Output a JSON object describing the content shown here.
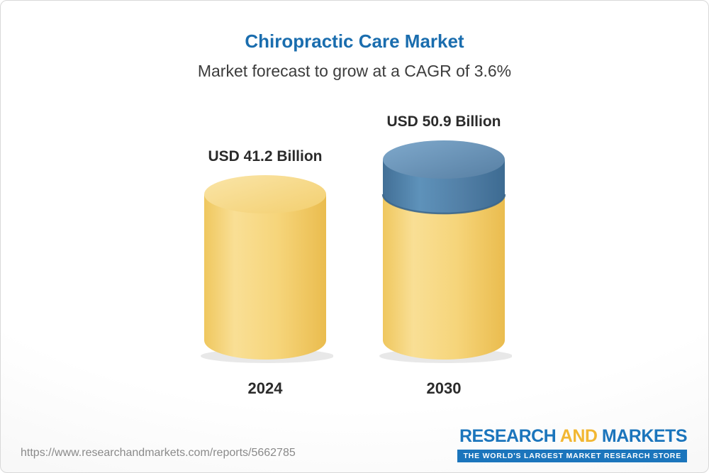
{
  "page": {
    "title": "Chiropractic Care Market",
    "subtitle": "Market forecast to grow at a CAGR of 3.6%"
  },
  "chart_data": {
    "type": "bar",
    "title": "Chiropractic Care Market",
    "subtitle": "Market forecast to grow at a CAGR of 3.6%",
    "cagr_percent": 3.6,
    "unit": "USD Billion",
    "categories": [
      "2024",
      "2030"
    ],
    "values": [
      41.2,
      50.9
    ],
    "ylim": [
      0,
      50.9
    ],
    "grid": false,
    "legend": "none",
    "bars": [
      {
        "category": "2024",
        "value": 41.2,
        "label": "USD 41.2 Billion",
        "segments": [
          {
            "value": 41.2,
            "color": "yellow"
          }
        ]
      },
      {
        "category": "2030",
        "value": 50.9,
        "label": "USD 50.9 Billion",
        "segments": [
          {
            "value": 41.2,
            "color": "yellow"
          },
          {
            "value": 9.7,
            "color": "blue"
          }
        ]
      }
    ],
    "colors": {
      "base_segment": "#F6D173",
      "growth_segment": "#4E81A9",
      "title_accent": "#1A6DAE"
    }
  },
  "footer": {
    "url": "https://www.researchandmarkets.com/reports/5662785",
    "logo": {
      "research": "RESEARCH",
      "and": "AND",
      "markets": "MARKETS",
      "tagline": "THE WORLD'S LARGEST MARKET RESEARCH STORE"
    }
  }
}
